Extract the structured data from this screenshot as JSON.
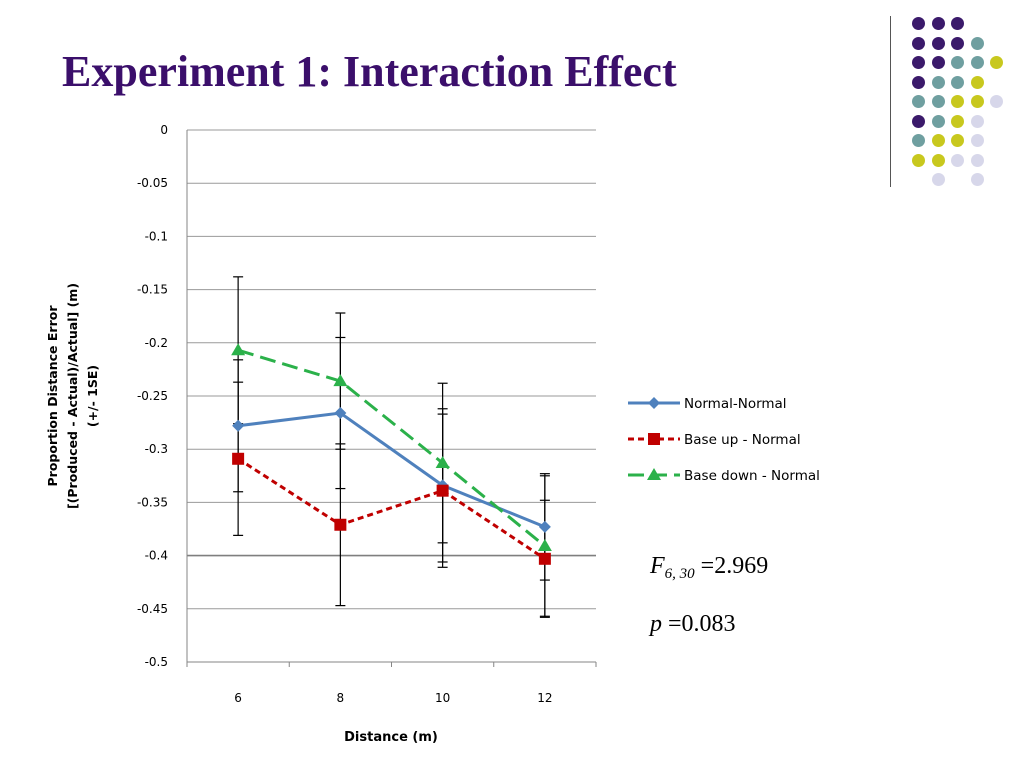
{
  "slide": {
    "title": "Experiment 1: Interaction Effect"
  },
  "decor": {
    "dot_colors": {
      "purple": "#3b1a6b",
      "teal": "#6f9fa0",
      "yellow": "#c8c81e",
      "lavender": "#d7d7ea"
    },
    "dot_grid": [
      [
        "purple",
        "purple",
        "purple",
        "",
        ""
      ],
      [
        "purple",
        "purple",
        "purple",
        "teal",
        ""
      ],
      [
        "purple",
        "purple",
        "teal",
        "teal",
        "yellow"
      ],
      [
        "purple",
        "teal",
        "teal",
        "yellow",
        ""
      ],
      [
        "teal",
        "teal",
        "yellow",
        "yellow",
        "lavender"
      ],
      [
        "purple",
        "teal",
        "yellow",
        "lavender",
        ""
      ],
      [
        "teal",
        "yellow",
        "yellow",
        "lavender",
        ""
      ],
      [
        "yellow",
        "yellow",
        "lavender",
        "lavender",
        ""
      ],
      [
        "",
        "lavender",
        "",
        "lavender",
        ""
      ]
    ]
  },
  "stats": {
    "f_symbol": "F",
    "f_subscript": "6, 30",
    "f_value": "=2.969",
    "p_symbol": "p",
    "p_value": "=0.083"
  },
  "chart_data": {
    "type": "line",
    "xlabel": "Distance (m)",
    "ylabel_line1": "Proportion Distance Error",
    "ylabel_line2": "[(Produced - Actual)/Actual] (m)",
    "ylabel_line3": "(+/- 1SE)",
    "categories": [
      "6",
      "8",
      "10",
      "12"
    ],
    "ylim": [
      -0.5,
      0
    ],
    "yticks": [
      0,
      -0.05,
      -0.1,
      -0.15,
      -0.2,
      -0.25,
      -0.3,
      -0.35,
      -0.4,
      -0.45,
      -0.5
    ],
    "ytick_labels": [
      "0",
      "-0.05",
      "-0.1",
      "-0.15",
      "-0.2",
      "-0.25",
      "-0.3",
      "-0.35",
      "-0.4",
      "-0.45",
      "-0.5"
    ],
    "grid": true,
    "legend_position": "right",
    "series": [
      {
        "name": "Normal-Normal",
        "color": "#4f81bd",
        "marker": "diamond",
        "dash": "solid",
        "values": [
          -0.278,
          -0.266,
          -0.334,
          -0.373
        ],
        "error": [
          0.062,
          0.071,
          0.072,
          0.05
        ]
      },
      {
        "name": "Base up - Normal",
        "color": "#c00000",
        "marker": "square",
        "dash": "dashed",
        "values": [
          -0.309,
          -0.371,
          -0.339,
          -0.403
        ],
        "error": [
          0.072,
          0.076,
          0.072,
          0.055
        ]
      },
      {
        "name": "Base down - Normal",
        "color": "#2bb14a",
        "marker": "triangle",
        "dash": "longdash",
        "values": [
          -0.207,
          -0.236,
          -0.313,
          -0.391
        ],
        "error": [
          0.069,
          0.064,
          0.075,
          0.066
        ]
      }
    ]
  }
}
